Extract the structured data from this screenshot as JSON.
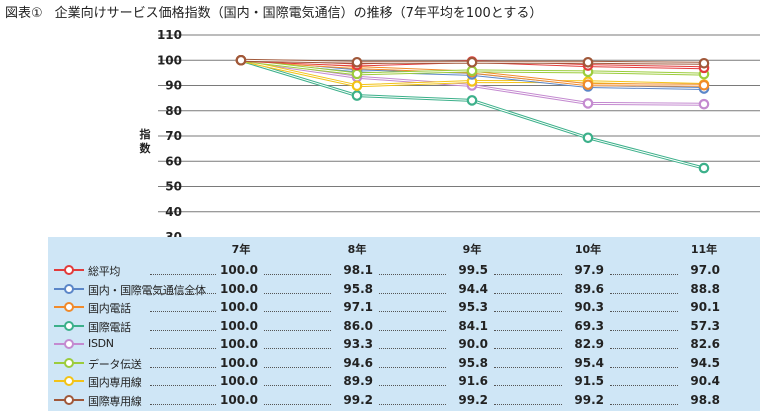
{
  "title_number": "図表①",
  "title_text": "企業向けサービス価格指数（国内・国際電気通信）の推移（7年平均を100とする）",
  "chart_data": {
    "type": "line",
    "title": "企業向けサービス価格指数（国内・国際電気通信）の推移（7年平均を100とする）",
    "ylabel": "指数",
    "ylim": [
      30,
      110
    ],
    "yticks": [
      110,
      100,
      90,
      80,
      70,
      60,
      50,
      40,
      30
    ],
    "grid": true,
    "legend": "table-below",
    "categories": [
      "7年",
      "8年",
      "9年",
      "10年",
      "11年"
    ],
    "series": [
      {
        "name": "総平均",
        "color": "#e23b3b",
        "values": [
          100.0,
          98.1,
          99.5,
          97.9,
          97.0
        ]
      },
      {
        "name": "国内・国際電気通信全体",
        "color": "#5b86c8",
        "values": [
          100.0,
          95.8,
          94.4,
          89.6,
          88.8
        ]
      },
      {
        "name": "国内電話",
        "color": "#f08a2b",
        "values": [
          100.0,
          97.1,
          95.3,
          90.3,
          90.1
        ]
      },
      {
        "name": "国際電話",
        "color": "#3cb08a",
        "values": [
          100.0,
          86.0,
          84.1,
          69.3,
          57.3
        ]
      },
      {
        "name": "ISDN",
        "color": "#c48ad0",
        "values": [
          100.0,
          93.3,
          90.0,
          82.9,
          82.6
        ]
      },
      {
        "name": "データ伝送",
        "color": "#9ccc3c",
        "values": [
          100.0,
          94.6,
          95.8,
          95.4,
          94.5
        ]
      },
      {
        "name": "国内専用線",
        "color": "#f2c318",
        "values": [
          100.0,
          89.9,
          91.6,
          91.5,
          90.4
        ]
      },
      {
        "name": "国際専用線",
        "color": "#a0583a",
        "values": [
          100.0,
          99.2,
          99.2,
          99.2,
          98.8
        ]
      }
    ]
  }
}
